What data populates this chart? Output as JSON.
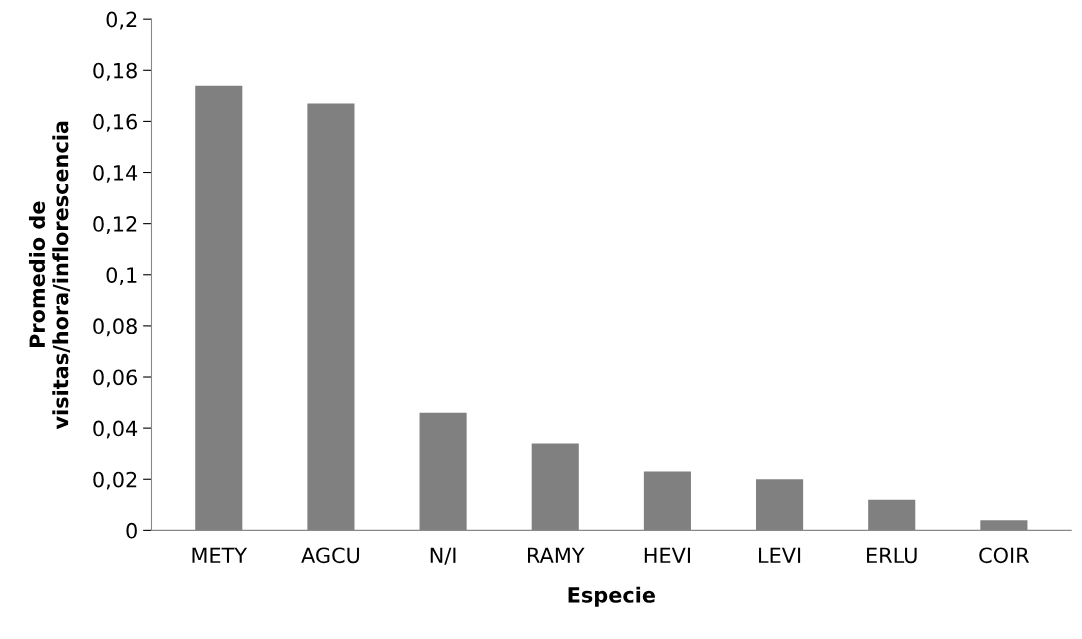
{
  "chart_data": {
    "type": "bar",
    "xlabel": "Especie",
    "ylabel": "Promedio de\nvisitas/hora/inflorescencia",
    "categories": [
      "METY",
      "AGCU",
      "N/I",
      "RAMY",
      "HEVI",
      "LEVI",
      "ERLU",
      "COIR"
    ],
    "values": [
      0.174,
      0.167,
      0.046,
      0.034,
      0.023,
      0.02,
      0.012,
      0.004
    ],
    "color": "#808080",
    "ylim": [
      0,
      0.2
    ],
    "yticks": [
      {
        "value": 0,
        "label": "0"
      },
      {
        "value": 0.02,
        "label": "0,02"
      },
      {
        "value": 0.04,
        "label": "0,04"
      },
      {
        "value": 0.06,
        "label": "0,06"
      },
      {
        "value": 0.08,
        "label": "0,08"
      },
      {
        "value": 0.1,
        "label": "0,1"
      },
      {
        "value": 0.12,
        "label": "0,12"
      },
      {
        "value": 0.14,
        "label": "0,14"
      },
      {
        "value": 0.16,
        "label": "0,16"
      },
      {
        "value": 0.18,
        "label": "0,18"
      },
      {
        "value": 0.2,
        "label": "0,2"
      }
    ],
    "grid": false
  }
}
